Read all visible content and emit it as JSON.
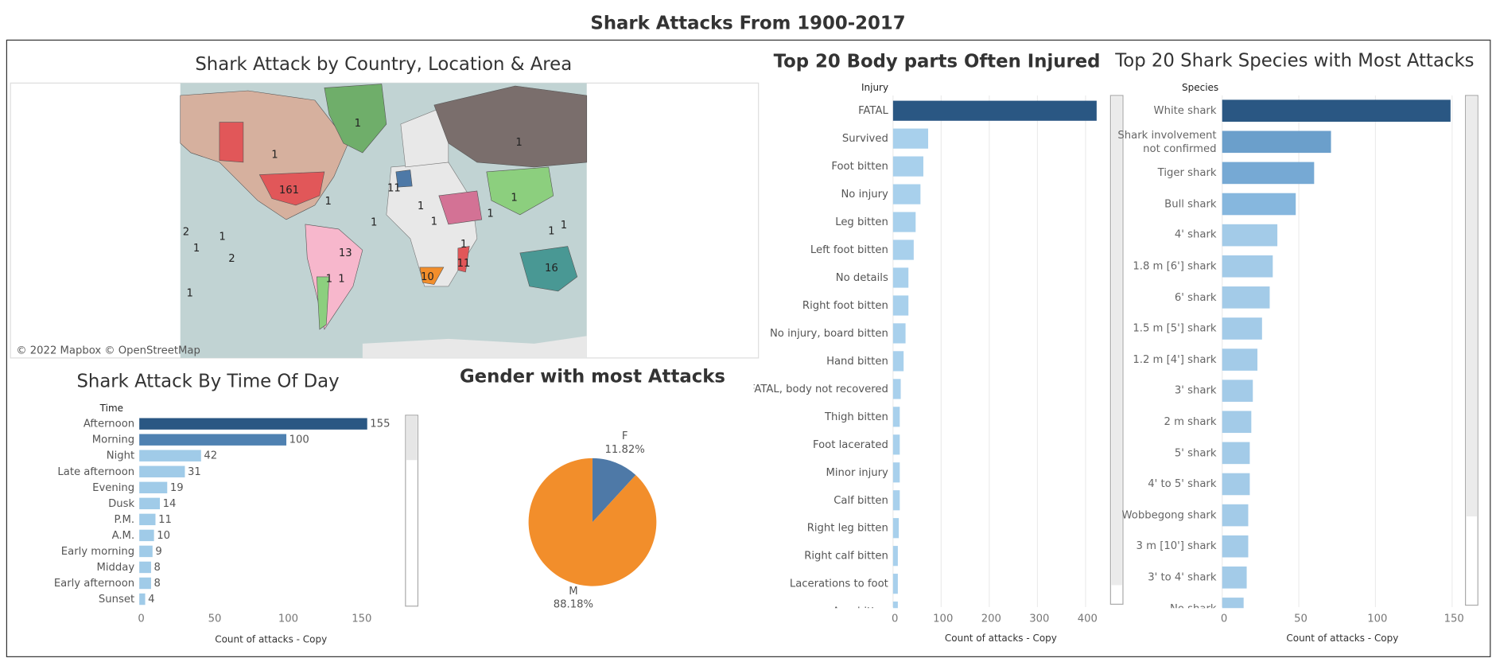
{
  "page_title": "Shark Attacks From 1900-2017",
  "chart_data": [
    {
      "type": "map",
      "title": "Shark Attack by Country, Location & Area",
      "attribution": "© 2022 Mapbox © OpenStreetMap",
      "values": [
        161,
        1,
        1,
        1,
        13,
        16,
        10,
        1,
        1,
        1,
        1,
        1,
        1,
        2,
        1,
        1,
        2,
        1,
        1,
        1,
        11,
        1,
        1,
        1,
        11
      ]
    },
    {
      "type": "bar",
      "title": "Shark Attack By Time Of Day",
      "y_label": "Time",
      "x_label": "Count of attacks - Copy",
      "categories": [
        "Afternoon",
        "Morning",
        "Night",
        "Late afternoon",
        "Evening",
        "Dusk",
        "P.M.",
        "A.M.",
        "Early morning",
        "Midday",
        "Early afternoon",
        "Sunset"
      ],
      "values": [
        155,
        100,
        42,
        31,
        19,
        14,
        11,
        10,
        9,
        8,
        8,
        4
      ],
      "colors": [
        "#2a5783",
        "#4f81b1",
        "#a0cbe8",
        "#a0cbe8",
        "#a0cbe8",
        "#a0cbe8",
        "#a0cbe8",
        "#a0cbe8",
        "#a0cbe8",
        "#a0cbe8",
        "#a0cbe8",
        "#a0cbe8"
      ],
      "xlim": [
        0,
        170
      ],
      "xticks": [
        0,
        50,
        100,
        150
      ],
      "show_values": true,
      "grid": false
    },
    {
      "type": "pie",
      "title": "Gender with most Attacks",
      "categories": [
        "F",
        "M"
      ],
      "values": [
        11.82,
        88.18
      ],
      "value_labels": [
        "11.82%",
        "88.18%"
      ],
      "colors": [
        "#4e79a7",
        "#f28e2b"
      ]
    },
    {
      "type": "bar",
      "title": "Top 20 Body parts Often Injured",
      "y_label": "Injury",
      "x_label": "Count of attacks - Copy",
      "categories": [
        "FATAL",
        "Survived",
        "Foot bitten",
        "No injury",
        "Leg bitten",
        "Left foot bitten",
        "No details",
        "Right foot bitten",
        "No injury, board bitten",
        "Hand bitten",
        "FATAL, body not recovered",
        "Thigh bitten",
        "Foot lacerated",
        "Minor injury",
        "Calf bitten",
        "Right leg bitten",
        "Right calf bitten",
        "Lacerations to foot",
        "Arm bitten"
      ],
      "values": [
        423,
        73,
        63,
        57,
        47,
        43,
        32,
        32,
        26,
        22,
        16,
        14,
        14,
        14,
        14,
        12,
        10,
        10,
        10
      ],
      "colors": [
        "#2a5783",
        "#a8d0ec",
        "#a8d0ec",
        "#a8d0ec",
        "#a8d0ec",
        "#a8d0ec",
        "#a8d0ec",
        "#a8d0ec",
        "#a8d0ec",
        "#a8d0ec",
        "#a8d0ec",
        "#a8d0ec",
        "#a8d0ec",
        "#a8d0ec",
        "#a8d0ec",
        "#a8d0ec",
        "#a8d0ec",
        "#a8d0ec",
        "#a8d0ec"
      ],
      "xlim": [
        0,
        440
      ],
      "xticks": [
        0,
        100,
        200,
        300,
        400
      ],
      "show_values": false,
      "grid": true
    },
    {
      "type": "bar",
      "title": "Top 20 Shark Species with Most Attacks",
      "y_label": "Species",
      "x_label": "Count of attacks - Copy",
      "categories": [
        "White shark",
        "Shark involvement not confirmed",
        "Tiger shark",
        "Bull shark",
        "4' shark",
        "1.8 m [6'] shark",
        "6' shark",
        "1.5 m [5'] shark",
        "1.2 m [4'] shark",
        "3' shark",
        "2 m shark",
        "5' shark",
        "4' to 5' shark",
        "Wobbegong shark",
        "3 m [10'] shark",
        "3' to 4' shark",
        "No shark"
      ],
      "values": [
        149,
        71,
        60,
        48,
        36,
        33,
        31,
        26,
        23,
        20,
        19,
        18,
        18,
        17,
        17,
        16,
        14
      ],
      "colors": [
        "#2a5783",
        "#6b9fcb",
        "#76a9d4",
        "#86b7de",
        "#a3cbe8",
        "#a3cbe8",
        "#a3cbe8",
        "#a3cbe8",
        "#a3cbe8",
        "#a3cbe8",
        "#a3cbe8",
        "#a3cbe8",
        "#a3cbe8",
        "#a3cbe8",
        "#a3cbe8",
        "#a3cbe8",
        "#a3cbe8"
      ],
      "xlim": [
        0,
        155
      ],
      "xticks": [
        0,
        50,
        100,
        150
      ],
      "show_values": false,
      "grid": true
    }
  ]
}
